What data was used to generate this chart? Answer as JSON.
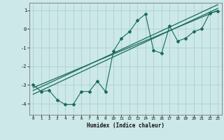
{
  "title": "",
  "xlabel": "Humidex (Indice chaleur)",
  "ylabel": "",
  "bg_color": "#cce8e8",
  "line_color": "#1a6b5a",
  "xlim": [
    -0.5,
    23.5
  ],
  "ylim": [
    -4.6,
    1.4
  ],
  "x_data": [
    0,
    1,
    2,
    3,
    4,
    5,
    6,
    7,
    8,
    9,
    10,
    11,
    12,
    13,
    14,
    15,
    16,
    17,
    18,
    19,
    20,
    21,
    22,
    23
  ],
  "y_scatter": [
    -3.0,
    -3.35,
    -3.3,
    -3.8,
    -4.05,
    -4.05,
    -3.35,
    -3.35,
    -2.8,
    -3.35,
    -1.2,
    -0.5,
    -0.15,
    0.45,
    0.8,
    -1.15,
    -1.3,
    0.15,
    -0.65,
    -0.5,
    -0.15,
    0.0,
    0.85,
    0.95
  ],
  "reg_line1_x": [
    0,
    23
  ],
  "reg_line1_y": [
    -3.3,
    1.3
  ],
  "reg_line2_x": [
    0,
    23
  ],
  "reg_line2_y": [
    -3.5,
    1.1
  ],
  "reg_line3_x": [
    0,
    23
  ],
  "reg_line3_y": [
    -3.15,
    0.99
  ]
}
